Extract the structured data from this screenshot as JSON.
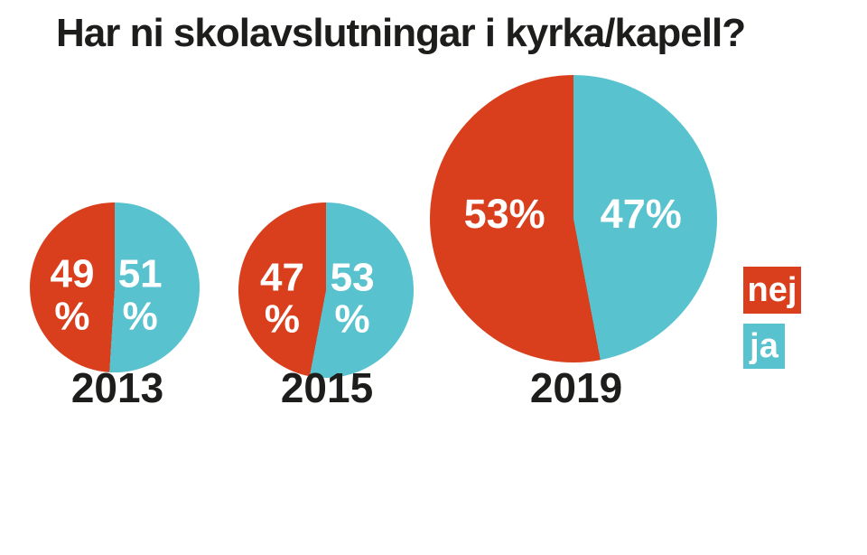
{
  "title": "Har ni skolavslutningar i kyrka/kapell?",
  "colors": {
    "nej": "#d93f1c",
    "ja": "#58c2ce",
    "text_dark": "#1d1d1b",
    "label_text": "#ffffff",
    "background": "#ffffff"
  },
  "legend": {
    "position": "right",
    "items": [
      {
        "label": "nej",
        "color": "#d93f1c"
      },
      {
        "label": "ja",
        "color": "#58c2ce"
      }
    ]
  },
  "chart_data": [
    {
      "type": "pie",
      "title": "2013",
      "start_angle_deg": 0,
      "direction": "clockwise",
      "value_format": "percent",
      "slices": [
        {
          "label": "nej",
          "value": 49,
          "color": "#d93f1c",
          "side": "left",
          "display": "49\n%"
        },
        {
          "label": "ja",
          "value": 51,
          "color": "#58c2ce",
          "side": "right",
          "display": "51\n%"
        }
      ]
    },
    {
      "type": "pie",
      "title": "2015",
      "start_angle_deg": 0,
      "direction": "clockwise",
      "value_format": "percent",
      "slices": [
        {
          "label": "nej",
          "value": 47,
          "color": "#d93f1c",
          "side": "left",
          "display": "47\n%"
        },
        {
          "label": "ja",
          "value": 53,
          "color": "#58c2ce",
          "side": "right",
          "display": "53\n%"
        }
      ]
    },
    {
      "type": "pie",
      "title": "2019",
      "start_angle_deg": 0,
      "direction": "clockwise",
      "value_format": "percent",
      "slices": [
        {
          "label": "nej",
          "value": 53,
          "color": "#d93f1c",
          "side": "left",
          "display": "53%"
        },
        {
          "label": "ja",
          "value": 47,
          "color": "#58c2ce",
          "side": "right",
          "display": "47%"
        }
      ]
    }
  ]
}
